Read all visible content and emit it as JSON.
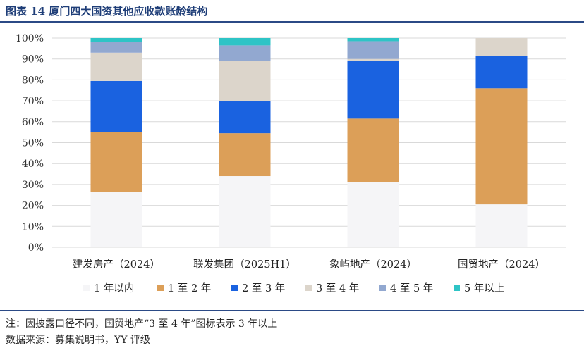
{
  "header": {
    "title": "图表 14 厦门四大国资其他应收款账龄结构"
  },
  "footer": {
    "note": "注：因披露口径不同，国贸地产“3 至 4 年”图标表示 3 年以上",
    "source": "数据来源：募集说明书，YY 评级"
  },
  "chart_data": {
    "type": "bar",
    "stacked": true,
    "categories": [
      "建发房产（2024）",
      "联发集团（2025H1）",
      "象屿地产（2024）",
      "国贸地产（2024）"
    ],
    "yticks": [
      "0%",
      "10%",
      "20%",
      "30%",
      "40%",
      "50%",
      "60%",
      "70%",
      "80%",
      "90%",
      "100%"
    ],
    "ylim": [
      0,
      100
    ],
    "grid": true,
    "legend_position": "bottom",
    "series": [
      {
        "name": "1 年以内",
        "color": "#f5f5f7",
        "values": [
          26.5,
          34,
          31,
          20.5
        ]
      },
      {
        "name": "1 至 2 年",
        "color": "#dc9f58",
        "values": [
          28.5,
          20.5,
          30.5,
          55.5
        ]
      },
      {
        "name": "2 至 3 年",
        "color": "#1a62e0",
        "values": [
          24.5,
          15.5,
          27.5,
          15.5
        ]
      },
      {
        "name": "3 至 4 年",
        "color": "#dcd5cb",
        "values": [
          13.5,
          19,
          1,
          8.5
        ]
      },
      {
        "name": "4 至 5 年",
        "color": "#92a8d0",
        "values": [
          5,
          7.5,
          8.5,
          0
        ]
      },
      {
        "name": "5 年以上",
        "color": "#2ec4c6",
        "values": [
          2,
          3.5,
          1.5,
          0
        ]
      }
    ]
  }
}
